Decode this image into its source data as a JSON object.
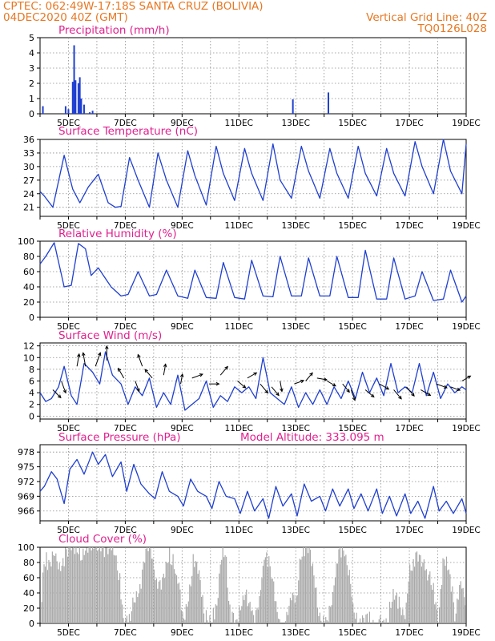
{
  "header": {
    "line1_left": "CPTEC:   062:49W-17:18S   SANTA CRUZ (BOLIVIA)",
    "line2_left": "04DEC2020 40Z (GMT)",
    "line2_right": "Vertical Grid Line: 40Z",
    "line3_right": "TQ0126L028"
  },
  "colors": {
    "header": "#e87722",
    "title": "#e0208f",
    "line": "#1f3fd0",
    "cloud": "#a9a9a9",
    "grid": "#8c8c8c"
  },
  "chart_data": [
    {
      "type": "bar",
      "title": "Precipitation (mm/h)",
      "ylim": [
        0,
        5
      ],
      "yticks": [
        0,
        1,
        2,
        3,
        4,
        5
      ],
      "xticklabels": [
        "5DEC",
        "7DEC",
        "9DEC",
        "11DEC",
        "13DEC",
        "15DEC",
        "17DEC",
        "19DEC"
      ],
      "x_day_range": [
        4.0,
        19.0
      ],
      "bars": [
        {
          "x": 4.1,
          "y": 0.5
        },
        {
          "x": 4.9,
          "y": 0.5
        },
        {
          "x": 5.0,
          "y": 0.3
        },
        {
          "x": 5.15,
          "y": 2.1
        },
        {
          "x": 5.2,
          "y": 4.5
        },
        {
          "x": 5.25,
          "y": 2.2
        },
        {
          "x": 5.35,
          "y": 2.0
        },
        {
          "x": 5.4,
          "y": 2.4
        },
        {
          "x": 5.45,
          "y": 1.0
        },
        {
          "x": 5.55,
          "y": 0.6
        },
        {
          "x": 5.75,
          "y": 0.1
        },
        {
          "x": 5.85,
          "y": 0.2
        },
        {
          "x": 12.9,
          "y": 0.95
        },
        {
          "x": 14.15,
          "y": 1.4
        }
      ]
    },
    {
      "type": "line",
      "title": "Surface Temperature (nC)",
      "ylim": [
        19,
        36
      ],
      "yticks": [
        21,
        24,
        27,
        30,
        33,
        36
      ],
      "xticklabels": [
        "5DEC",
        "7DEC",
        "9DEC",
        "11DEC",
        "13DEC",
        "15DEC",
        "17DEC",
        "19DEC"
      ],
      "x_day_range": [
        4.0,
        19.0
      ],
      "x": [
        4.0,
        4.15,
        4.45,
        4.85,
        5.15,
        5.4,
        5.7,
        6.05,
        6.4,
        6.65,
        6.85,
        7.15,
        7.45,
        7.85,
        8.15,
        8.45,
        8.85,
        9.2,
        9.45,
        9.85,
        10.2,
        10.45,
        10.85,
        11.2,
        11.45,
        11.85,
        12.2,
        12.45,
        12.85,
        13.2,
        13.45,
        13.85,
        14.2,
        14.45,
        14.85,
        15.2,
        15.45,
        15.85,
        16.2,
        16.45,
        16.85,
        17.2,
        17.45,
        17.85,
        18.2,
        18.45,
        18.85,
        19.0
      ],
      "y": [
        24.5,
        23.5,
        21.0,
        32.5,
        25.0,
        22.0,
        25.5,
        28.3,
        22.0,
        21.0,
        21.2,
        32.0,
        27.0,
        21.0,
        33.0,
        27.0,
        21.0,
        33.5,
        28.0,
        21.5,
        34.5,
        28.5,
        22.5,
        34.0,
        28.5,
        22.5,
        35.0,
        27.0,
        23.0,
        34.5,
        29.0,
        23.0,
        34.0,
        28.5,
        23.0,
        34.5,
        28.5,
        23.5,
        34.0,
        28.5,
        23.5,
        35.5,
        30.0,
        24.0,
        36.0,
        29.0,
        24.0,
        35.0
      ]
    },
    {
      "type": "line",
      "title": "Relative Humidity (%)",
      "ylim": [
        0,
        100
      ],
      "yticks": [
        0,
        20,
        40,
        60,
        80,
        100
      ],
      "xticklabels": [
        "5DEC",
        "7DEC",
        "9DEC",
        "11DEC",
        "13DEC",
        "15DEC",
        "17DEC",
        "19DEC"
      ],
      "x_day_range": [
        4.0,
        19.0
      ],
      "x": [
        4.0,
        4.2,
        4.5,
        4.85,
        5.1,
        5.35,
        5.6,
        5.8,
        6.05,
        6.5,
        6.85,
        7.1,
        7.45,
        7.85,
        8.1,
        8.45,
        8.85,
        9.2,
        9.45,
        9.85,
        10.2,
        10.45,
        10.85,
        11.2,
        11.45,
        11.85,
        12.2,
        12.45,
        12.85,
        13.2,
        13.45,
        13.85,
        14.2,
        14.45,
        14.85,
        15.2,
        15.45,
        15.85,
        16.2,
        16.45,
        16.85,
        17.2,
        17.45,
        17.85,
        18.2,
        18.45,
        18.85,
        19.0
      ],
      "y": [
        70,
        80,
        98,
        40,
        42,
        97,
        90,
        55,
        65,
        40,
        28,
        30,
        60,
        28,
        30,
        62,
        28,
        25,
        62,
        26,
        25,
        72,
        26,
        24,
        75,
        28,
        27,
        80,
        28,
        28,
        78,
        28,
        28,
        80,
        26,
        26,
        88,
        24,
        24,
        78,
        24,
        28,
        60,
        22,
        24,
        62,
        20,
        28
      ]
    },
    {
      "type": "line",
      "title": "Surface Wind (m/s)",
      "ylim": [
        -0.5,
        12.5
      ],
      "yticks": [
        0,
        2,
        4,
        6,
        8,
        10,
        12
      ],
      "xticklabels": [
        "5DEC",
        "7DEC",
        "9DEC",
        "11DEC",
        "13DEC",
        "15DEC",
        "17DEC",
        "19DEC"
      ],
      "x_day_range": [
        4.0,
        19.0
      ],
      "x": [
        4.0,
        4.2,
        4.4,
        4.65,
        4.85,
        5.1,
        5.3,
        5.55,
        5.85,
        6.1,
        6.3,
        6.55,
        6.85,
        7.1,
        7.35,
        7.6,
        7.85,
        8.1,
        8.35,
        8.6,
        8.85,
        9.1,
        9.35,
        9.6,
        9.85,
        10.1,
        10.35,
        10.6,
        10.85,
        11.1,
        11.35,
        11.6,
        11.85,
        12.1,
        12.35,
        12.6,
        12.85,
        13.1,
        13.35,
        13.6,
        13.85,
        14.1,
        14.35,
        14.6,
        14.85,
        15.1,
        15.35,
        15.6,
        15.85,
        16.1,
        16.35,
        16.6,
        16.85,
        17.1,
        17.35,
        17.6,
        17.85,
        18.1,
        18.35,
        18.6,
        18.85,
        19.0
      ],
      "y": [
        4.0,
        2.5,
        3.0,
        5.0,
        8.5,
        3.5,
        2.0,
        9.0,
        7.5,
        5.5,
        11.0,
        7.0,
        5.5,
        2.0,
        5.0,
        3.5,
        6.5,
        1.5,
        4.0,
        2.0,
        7.0,
        1.0,
        2.0,
        3.0,
        6.0,
        1.5,
        3.5,
        2.5,
        5.0,
        4.0,
        5.0,
        3.0,
        10.0,
        4.0,
        3.0,
        2.0,
        5.0,
        1.5,
        4.0,
        2.0,
        4.5,
        2.0,
        5.0,
        3.0,
        6.0,
        3.0,
        7.5,
        4.0,
        6.5,
        3.5,
        9.0,
        4.0,
        5.0,
        4.0,
        9.0,
        3.5,
        7.5,
        3.0,
        5.5,
        4.0,
        5.0,
        4.5
      ],
      "arrows": [
        {
          "x": 4.45,
          "y": 4.5,
          "dir": 135,
          "len": 5.0
        },
        {
          "x": 4.75,
          "y": 6.0,
          "dir": 160,
          "len": 6.0
        },
        {
          "x": 5.3,
          "y": 8.5,
          "dir": 10,
          "len": 6.0
        },
        {
          "x": 5.6,
          "y": 8.5,
          "dir": 350,
          "len": 7.0
        },
        {
          "x": 5.95,
          "y": 8.5,
          "dir": 20,
          "len": 7.5
        },
        {
          "x": 6.35,
          "y": 9.5,
          "dir": 0,
          "len": 7.5
        },
        {
          "x": 6.95,
          "y": 6.5,
          "dir": 330,
          "len": 5.0
        },
        {
          "x": 7.35,
          "y": 6.0,
          "dir": 160,
          "len": 5.0
        },
        {
          "x": 7.6,
          "y": 8.5,
          "dir": 340,
          "len": 6.0
        },
        {
          "x": 7.95,
          "y": 6.5,
          "dir": 320,
          "len": 5.0
        },
        {
          "x": 8.35,
          "y": 7.0,
          "dir": 10,
          "len": 5.0
        },
        {
          "x": 8.95,
          "y": 5.5,
          "dir": 10,
          "len": 4.0
        },
        {
          "x": 9.35,
          "y": 6.5,
          "dir": 70,
          "len": 5.0
        },
        {
          "x": 9.95,
          "y": 5.5,
          "dir": 90,
          "len": 4.0
        },
        {
          "x": 10.35,
          "y": 7.0,
          "dir": 40,
          "len": 5.0
        },
        {
          "x": 10.95,
          "y": 6.0,
          "dir": 130,
          "len": 4.5
        },
        {
          "x": 11.3,
          "y": 6.5,
          "dir": 60,
          "len": 4.5
        },
        {
          "x": 11.75,
          "y": 5.5,
          "dir": 140,
          "len": 5.5
        },
        {
          "x": 12.15,
          "y": 5.0,
          "dir": 140,
          "len": 5.0
        },
        {
          "x": 12.45,
          "y": 6.0,
          "dir": 170,
          "len": 4.5
        },
        {
          "x": 12.95,
          "y": 5.5,
          "dir": 70,
          "len": 4.0
        },
        {
          "x": 13.35,
          "y": 6.0,
          "dir": 40,
          "len": 4.5
        },
        {
          "x": 13.75,
          "y": 6.5,
          "dir": 100,
          "len": 4.0
        },
        {
          "x": 14.1,
          "y": 6.0,
          "dir": 120,
          "len": 4.0
        },
        {
          "x": 14.65,
          "y": 5.5,
          "dir": 140,
          "len": 4.5
        },
        {
          "x": 14.95,
          "y": 4.5,
          "dir": 160,
          "len": 5.0
        },
        {
          "x": 15.45,
          "y": 4.5,
          "dir": 130,
          "len": 5.0
        },
        {
          "x": 15.95,
          "y": 5.5,
          "dir": 120,
          "len": 4.5
        },
        {
          "x": 16.45,
          "y": 4.5,
          "dir": 140,
          "len": 5.5
        },
        {
          "x": 16.9,
          "y": 5.0,
          "dir": 140,
          "len": 5.5
        },
        {
          "x": 17.4,
          "y": 4.5,
          "dir": 120,
          "len": 5.0
        },
        {
          "x": 17.95,
          "y": 5.5,
          "dir": 110,
          "len": 5.0
        },
        {
          "x": 18.45,
          "y": 5.0,
          "dir": 110,
          "len": 4.0
        },
        {
          "x": 18.85,
          "y": 6.0,
          "dir": 60,
          "len": 4.0
        }
      ]
    },
    {
      "type": "line",
      "title": "Surface Pressure (hPa)",
      "subtitle": "Model Altitude: 333.095 m",
      "ylim": [
        964,
        979.5
      ],
      "yticks": [
        966,
        969,
        972,
        975,
        978
      ],
      "xticklabels": [
        "5DEC",
        "7DEC",
        "9DEC",
        "11DEC",
        "13DEC",
        "15DEC",
        "17DEC",
        "19DEC"
      ],
      "x_day_range": [
        4.0,
        19.0
      ],
      "x": [
        4.0,
        4.15,
        4.4,
        4.6,
        4.85,
        5.05,
        5.3,
        5.55,
        5.85,
        6.05,
        6.3,
        6.55,
        6.85,
        7.05,
        7.3,
        7.55,
        7.85,
        8.05,
        8.3,
        8.55,
        8.85,
        9.05,
        9.3,
        9.55,
        9.85,
        10.05,
        10.3,
        10.55,
        10.85,
        11.05,
        11.3,
        11.55,
        11.85,
        12.05,
        12.3,
        12.55,
        12.85,
        13.05,
        13.3,
        13.55,
        13.85,
        14.05,
        14.3,
        14.55,
        14.85,
        15.05,
        15.3,
        15.55,
        15.85,
        16.05,
        16.3,
        16.55,
        16.85,
        17.05,
        17.3,
        17.55,
        17.85,
        18.05,
        18.3,
        18.55,
        18.85,
        19.0
      ],
      "y": [
        970.0,
        971.0,
        974.0,
        972.5,
        967.5,
        974.5,
        976.5,
        973.5,
        978.0,
        975.5,
        977.5,
        973.0,
        976.0,
        970.0,
        975.5,
        971.5,
        969.5,
        968.5,
        974.0,
        970.0,
        969.0,
        967.0,
        972.5,
        970.0,
        969.0,
        966.5,
        972.0,
        969.0,
        968.5,
        965.5,
        970.0,
        966.0,
        968.5,
        964.5,
        971.0,
        967.0,
        969.5,
        965.0,
        971.5,
        968.0,
        969.0,
        966.0,
        970.5,
        967.0,
        970.5,
        966.5,
        969.5,
        966.0,
        970.5,
        965.5,
        969.0,
        965.0,
        969.5,
        965.5,
        968.0,
        964.5,
        971.0,
        966.0,
        968.0,
        965.5,
        968.5,
        965.5
      ]
    },
    {
      "type": "bar",
      "title": "Cloud Cover (%)",
      "ylim": [
        0,
        100
      ],
      "yticks": [
        0,
        20,
        40,
        60,
        80,
        100
      ],
      "xticklabels": [
        "5DEC",
        "7DEC",
        "9DEC",
        "11DEC",
        "13DEC",
        "15DEC",
        "17DEC",
        "19DEC"
      ],
      "x_day_range": [
        4.0,
        19.0
      ],
      "envelope": {
        "x": [
          4.0,
          4.1,
          4.2,
          4.3,
          4.5,
          4.7,
          4.9,
          5.0,
          5.3,
          5.5,
          5.7,
          5.9,
          6.1,
          6.3,
          6.5,
          6.6,
          6.8,
          6.9,
          7.0,
          7.1,
          7.3,
          7.5,
          7.7,
          7.9,
          8.1,
          8.3,
          8.5,
          8.7,
          8.9,
          9.0,
          9.05,
          9.2,
          9.4,
          9.6,
          9.8,
          10.0,
          10.2,
          10.4,
          10.5,
          10.7,
          10.9,
          11.0,
          11.2,
          11.4,
          11.5,
          11.7,
          11.9,
          12.1,
          12.3,
          12.4,
          12.6,
          12.8,
          13.0,
          13.2,
          13.4,
          13.6,
          13.8,
          13.9,
          14.1,
          14.3,
          14.5,
          14.7,
          14.9,
          15.0,
          15.2,
          15.4,
          15.6,
          15.8,
          16.0,
          16.2,
          16.4,
          16.6,
          16.8,
          17.0,
          17.2,
          17.4,
          17.6,
          17.8,
          18.0,
          18.2,
          18.4,
          18.6,
          18.8,
          18.95,
          19.0
        ],
        "y": [
          0,
          80,
          85,
          75,
          90,
          70,
          95,
          98,
          100,
          90,
          95,
          100,
          98,
          95,
          100,
          95,
          60,
          5,
          0,
          5,
          30,
          40,
          95,
          100,
          45,
          60,
          90,
          80,
          40,
          5,
          0,
          35,
          88,
          60,
          10,
          0,
          20,
          98,
          95,
          5,
          0,
          15,
          45,
          20,
          0,
          30,
          95,
          70,
          25,
          0,
          0,
          30,
          35,
          96,
          100,
          75,
          15,
          0,
          0,
          40,
          100,
          90,
          60,
          25,
          0,
          0,
          5,
          0,
          0,
          0,
          45,
          30,
          0,
          70,
          85,
          80,
          70,
          55,
          0,
          90,
          70,
          5,
          55,
          30,
          0
        ]
      }
    }
  ]
}
